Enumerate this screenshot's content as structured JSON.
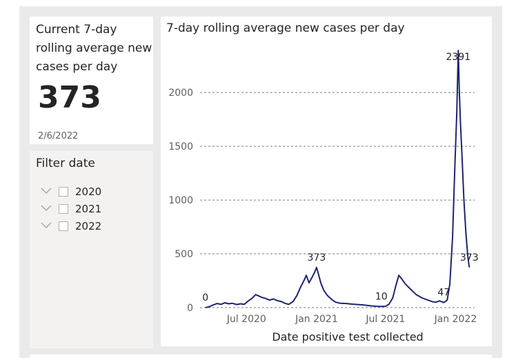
{
  "kpi": {
    "title": "Current 7-day rolling average new cases per day",
    "value": "373",
    "date": "2/6/2022"
  },
  "filter": {
    "title": "Filter date",
    "items": [
      {
        "label": "2020",
        "checked": false
      },
      {
        "label": "2021",
        "checked": false
      },
      {
        "label": "2022",
        "checked": false
      }
    ]
  },
  "chart_data": {
    "type": "line",
    "title": "7-day rolling average new cases per day",
    "xlabel": "Date positive test collected",
    "ylabel": "",
    "ylim": [
      0,
      2450
    ],
    "yticks": [
      0,
      500,
      1000,
      1500,
      2000
    ],
    "grid": "horizontal-dashed",
    "line_color": "#1c2470",
    "xticks": [
      {
        "date": "2020-07-01",
        "label": "Jul 2020"
      },
      {
        "date": "2021-01-01",
        "label": "Jan 2021"
      },
      {
        "date": "2021-07-01",
        "label": "Jul 2021"
      },
      {
        "date": "2022-01-01",
        "label": "Jan 2022"
      }
    ],
    "series": [
      {
        "points": [
          [
            "2020-03-15",
            0
          ],
          [
            "2020-03-25",
            8
          ],
          [
            "2020-04-05",
            25
          ],
          [
            "2020-04-15",
            38
          ],
          [
            "2020-04-25",
            30
          ],
          [
            "2020-05-05",
            45
          ],
          [
            "2020-05-15",
            35
          ],
          [
            "2020-05-25",
            40
          ],
          [
            "2020-06-05",
            28
          ],
          [
            "2020-06-15",
            35
          ],
          [
            "2020-06-25",
            30
          ],
          [
            "2020-07-05",
            60
          ],
          [
            "2020-07-15",
            85
          ],
          [
            "2020-07-25",
            120
          ],
          [
            "2020-08-01",
            110
          ],
          [
            "2020-08-10",
            95
          ],
          [
            "2020-08-20",
            85
          ],
          [
            "2020-08-30",
            70
          ],
          [
            "2020-09-10",
            80
          ],
          [
            "2020-09-20",
            65
          ],
          [
            "2020-10-01",
            55
          ],
          [
            "2020-10-10",
            40
          ],
          [
            "2020-10-20",
            30
          ],
          [
            "2020-10-31",
            55
          ],
          [
            "2020-11-10",
            110
          ],
          [
            "2020-11-20",
            190
          ],
          [
            "2020-11-30",
            260
          ],
          [
            "2020-12-05",
            300
          ],
          [
            "2020-12-12",
            230
          ],
          [
            "2020-12-20",
            280
          ],
          [
            "2020-12-27",
            330
          ],
          [
            "2021-01-01",
            373
          ],
          [
            "2021-01-06",
            310
          ],
          [
            "2021-01-12",
            230
          ],
          [
            "2021-01-20",
            160
          ],
          [
            "2021-01-30",
            110
          ],
          [
            "2021-02-10",
            75
          ],
          [
            "2021-02-20",
            50
          ],
          [
            "2021-03-05",
            40
          ],
          [
            "2021-03-20",
            38
          ],
          [
            "2021-04-05",
            32
          ],
          [
            "2021-04-20",
            28
          ],
          [
            "2021-05-05",
            24
          ],
          [
            "2021-05-20",
            18
          ],
          [
            "2021-06-05",
            12
          ],
          [
            "2021-06-20",
            10
          ],
          [
            "2021-07-01",
            12
          ],
          [
            "2021-07-10",
            30
          ],
          [
            "2021-07-20",
            90
          ],
          [
            "2021-07-28",
            200
          ],
          [
            "2021-08-05",
            300
          ],
          [
            "2021-08-12",
            270
          ],
          [
            "2021-08-22",
            220
          ],
          [
            "2021-09-05",
            170
          ],
          [
            "2021-09-20",
            120
          ],
          [
            "2021-10-05",
            90
          ],
          [
            "2021-10-20",
            70
          ],
          [
            "2021-11-01",
            55
          ],
          [
            "2021-11-10",
            50
          ],
          [
            "2021-11-20",
            62
          ],
          [
            "2021-12-01",
            47
          ],
          [
            "2021-12-10",
            70
          ],
          [
            "2021-12-17",
            220
          ],
          [
            "2021-12-24",
            650
          ],
          [
            "2021-12-30",
            1300
          ],
          [
            "2022-01-04",
            1800
          ],
          [
            "2022-01-08",
            2391
          ],
          [
            "2022-01-11",
            2000
          ],
          [
            "2022-01-14",
            1700
          ],
          [
            "2022-01-18",
            1400
          ],
          [
            "2022-01-23",
            1000
          ],
          [
            "2022-01-28",
            700
          ],
          [
            "2022-02-02",
            480
          ],
          [
            "2022-02-06",
            373
          ]
        ]
      }
    ],
    "annotations": [
      {
        "date": "2020-03-15",
        "value": 0,
        "label": "0"
      },
      {
        "date": "2021-01-01",
        "value": 373,
        "label": "373"
      },
      {
        "date": "2021-06-20",
        "value": 10,
        "label": "10"
      },
      {
        "date": "2021-12-01",
        "value": 47,
        "label": "47"
      },
      {
        "date": "2022-01-08",
        "value": 2391,
        "label": "2391"
      },
      {
        "date": "2022-02-06",
        "value": 373,
        "label": "373"
      }
    ]
  }
}
